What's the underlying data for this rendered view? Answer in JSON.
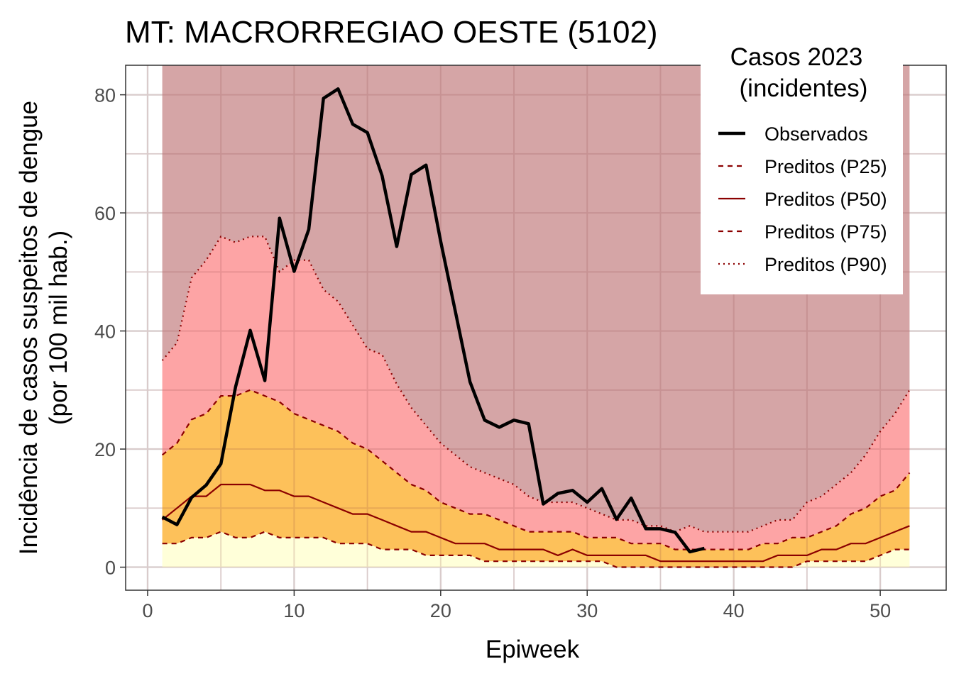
{
  "chart_data": {
    "type": "area",
    "title": "MT: MACRORREGIAO OESTE (5102)",
    "xlabel": "Epiweek",
    "ylabel": [
      "Incidência de casos suspeitos de dengue",
      "(por 100 mil hab.)"
    ],
    "xlim": [
      -1.5,
      54.5
    ],
    "ylim": [
      -3.9,
      85
    ],
    "x_ticks": [
      0,
      10,
      20,
      30,
      40,
      50
    ],
    "y_ticks": [
      0,
      20,
      40,
      60,
      80
    ],
    "x_minor_ticks": [
      5,
      15,
      25,
      35,
      45
    ],
    "y_minor_ticks": [
      10,
      30,
      50,
      70
    ],
    "grid": true,
    "legend": {
      "title": [
        "Casos 2023",
        "(incidentes)"
      ],
      "placement": "top-right",
      "entries": [
        {
          "label": "Observados",
          "style": "solid-thick",
          "color": "#000000"
        },
        {
          "label": "Preditos (P25)",
          "style": "dashed",
          "color": "#8b0000"
        },
        {
          "label": "Preditos (P50)",
          "style": "solid",
          "color": "#8b0000"
        },
        {
          "label": "Preditos (P75)",
          "style": "dashed",
          "color": "#8b0000"
        },
        {
          "label": "Preditos (P90)",
          "style": "dotted",
          "color": "#8b0000"
        }
      ]
    },
    "colors": {
      "band_low": "#ffffd9",
      "band_p25_p75": "#fdc15a",
      "band_p75_p90": "#fda4a5",
      "band_top": "#d5a5a6",
      "predicted_line": "#8b0000",
      "observed_line": "#000000"
    },
    "band_top_value": 85,
    "weeks": [
      1,
      2,
      3,
      4,
      5,
      6,
      7,
      8,
      9,
      10,
      11,
      12,
      13,
      14,
      15,
      16,
      17,
      18,
      19,
      20,
      21,
      22,
      23,
      24,
      25,
      26,
      27,
      28,
      29,
      30,
      31,
      32,
      33,
      34,
      35,
      36,
      37,
      38,
      39,
      40,
      41,
      42,
      43,
      44,
      45,
      46,
      47,
      48,
      49,
      50,
      51,
      52
    ],
    "series": [
      {
        "name": "Preditos (P25)",
        "values": [
          4,
          4,
          5,
          5,
          6,
          5,
          5,
          6,
          5,
          5,
          5,
          5,
          4,
          4,
          4,
          3,
          3,
          3,
          2,
          2,
          2,
          2,
          1,
          1,
          1,
          1,
          1,
          1,
          1,
          1,
          1,
          0,
          0,
          0,
          0,
          0,
          0,
          0,
          0,
          0,
          0,
          0,
          0,
          0,
          1,
          1,
          1,
          1,
          1,
          2,
          3,
          3
        ]
      },
      {
        "name": "Preditos (P50)",
        "values": [
          8,
          10,
          12,
          12,
          14,
          14,
          14,
          13,
          13,
          12,
          12,
          11,
          10,
          9,
          9,
          8,
          7,
          6,
          6,
          5,
          4,
          4,
          4,
          3,
          3,
          3,
          3,
          2,
          3,
          2,
          2,
          2,
          2,
          2,
          1,
          1,
          1,
          1,
          1,
          1,
          1,
          1,
          2,
          2,
          2,
          3,
          3,
          4,
          4,
          5,
          6,
          7
        ]
      },
      {
        "name": "Preditos (P75)",
        "values": [
          19,
          21,
          25,
          26,
          29,
          29,
          30,
          29,
          28,
          26,
          25,
          24,
          23,
          21,
          20,
          18,
          16,
          14,
          13,
          11,
          10,
          9,
          9,
          8,
          7,
          6,
          6,
          6,
          6,
          5,
          5,
          5,
          4,
          4,
          4,
          3,
          3,
          3,
          3,
          3,
          3,
          4,
          4,
          5,
          5,
          6,
          7,
          9,
          10,
          12,
          13,
          16
        ]
      },
      {
        "name": "Preditos (P90)",
        "values": [
          35,
          38,
          49,
          52,
          56,
          55,
          56,
          56,
          50,
          52,
          52,
          47,
          45,
          41,
          37,
          36,
          31,
          27,
          24,
          21,
          19,
          17,
          16,
          15,
          14,
          12,
          11,
          11,
          11,
          10,
          9,
          8,
          8,
          7,
          7,
          6,
          7,
          6,
          6,
          6,
          6,
          7,
          8,
          8,
          11,
          12,
          14,
          16,
          19,
          23,
          26,
          30
        ]
      },
      {
        "name": "Observados",
        "values": [
          8.5,
          7.2,
          11.8,
          13.9,
          17.5,
          30.5,
          40.1,
          31.6,
          59.1,
          50.1,
          57.2,
          79.4,
          81.0,
          75.0,
          73.6,
          66.3,
          54.3,
          66.5,
          68.1,
          55.2,
          43.3,
          31.4,
          24.9,
          23.7,
          24.9,
          24.3,
          10.7,
          12.5,
          13.0,
          11.0,
          13.3,
          8.1,
          11.7,
          6.5,
          6.5,
          5.9,
          2.6,
          3.2
        ]
      }
    ]
  }
}
